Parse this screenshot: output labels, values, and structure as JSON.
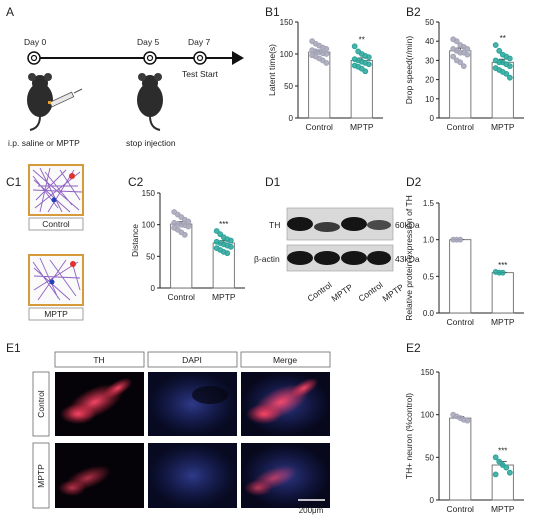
{
  "panels": {
    "A": "A",
    "B1": "B1",
    "B2": "B2",
    "C1": "C1",
    "C2": "C2",
    "D1": "D1",
    "D2": "D2",
    "E1": "E1",
    "E2": "E2"
  },
  "timeline": {
    "day0": "Day 0",
    "day5": "Day 5",
    "day7": "Day 7",
    "test_start": "Test Start",
    "injection": "i.p. saline or MPTP",
    "stop": "stop injection"
  },
  "maze": {
    "control_label": "Control",
    "mptp_label": "MPTP"
  },
  "western": {
    "band_th": "TH",
    "band_actin": "β-actin",
    "size_th": "60kDa",
    "size_actin": "43kDa",
    "lanes": [
      "Control",
      "MPTP",
      "Control",
      "MPTP"
    ]
  },
  "micro": {
    "columns": [
      "TH",
      "DAPI",
      "Merge"
    ],
    "rows": [
      "Control",
      "MPTP"
    ],
    "scale": "200μm"
  },
  "colors": {
    "control": "#a4a4b8",
    "mptp": "#2aa59a",
    "border": "#6c6c6c"
  },
  "chart_data": [
    {
      "id": "B1",
      "type": "bar",
      "ylabel": "Latent time(s)",
      "categories": [
        "Control",
        "MPTP"
      ],
      "values": [
        103,
        90
      ],
      "yticks": [
        0,
        50,
        100,
        150
      ],
      "ylim": [
        0,
        150
      ],
      "significance": [
        "",
        "**"
      ],
      "points": [
        [
          120,
          116,
          113,
          110,
          108,
          106,
          104,
          103,
          101,
          100,
          98,
          96,
          93,
          90,
          86
        ],
        [
          112,
          104,
          100,
          97,
          95,
          92,
          90,
          88,
          86,
          84,
          82,
          80,
          77,
          73
        ]
      ]
    },
    {
      "id": "B2",
      "type": "bar",
      "ylabel": "Drop speed(r/min)",
      "categories": [
        "Control",
        "MPTP"
      ],
      "values": [
        35,
        29
      ],
      "yticks": [
        0,
        10,
        20,
        30,
        40,
        50
      ],
      "ylim": [
        0,
        50
      ],
      "significance": [
        "",
        "**"
      ],
      "points": [
        [
          41,
          40,
          38,
          37,
          36,
          36,
          35,
          34,
          34,
          33,
          32,
          30,
          29,
          27
        ],
        [
          38,
          35,
          33,
          32,
          31,
          30,
          29,
          29,
          28,
          27,
          26,
          25,
          24,
          23,
          21
        ]
      ]
    },
    {
      "id": "C2",
      "type": "bar",
      "ylabel": "Distance",
      "categories": [
        "Control",
        "MPTP"
      ],
      "values": [
        101,
        71
      ],
      "yticks": [
        0,
        50,
        100,
        150
      ],
      "ylim": [
        0,
        150
      ],
      "significance": [
        "",
        "***"
      ],
      "points": [
        [
          120,
          116,
          112,
          108,
          105,
          103,
          101,
          100,
          99,
          97,
          95,
          92,
          88,
          84
        ],
        [
          90,
          85,
          80,
          77,
          75,
          73,
          71,
          69,
          67,
          65,
          63,
          60,
          57,
          55
        ]
      ]
    },
    {
      "id": "D2",
      "type": "bar",
      "ylabel": "Relative protein expression of TH",
      "categories": [
        "Control",
        "MPTP"
      ],
      "values": [
        1.0,
        0.55
      ],
      "yticks": [
        0.0,
        0.5,
        1.0,
        1.5
      ],
      "ylim": [
        0,
        1.5
      ],
      "significance": [
        "",
        "***"
      ],
      "points": [
        [
          1.0,
          1.0,
          1.0
        ],
        [
          0.56,
          0.55,
          0.55
        ]
      ]
    },
    {
      "id": "E2",
      "type": "bar",
      "ylabel": "TH+ neuron  (%control)",
      "categories": [
        "Control",
        "MPTP"
      ],
      "values": [
        96,
        41
      ],
      "yticks": [
        0,
        50,
        100,
        150
      ],
      "ylim": [
        0,
        150
      ],
      "significance": [
        "",
        "***"
      ],
      "points": [
        [
          100,
          98,
          96,
          94,
          93
        ],
        [
          50,
          45,
          41,
          38,
          32,
          30
        ]
      ]
    }
  ]
}
